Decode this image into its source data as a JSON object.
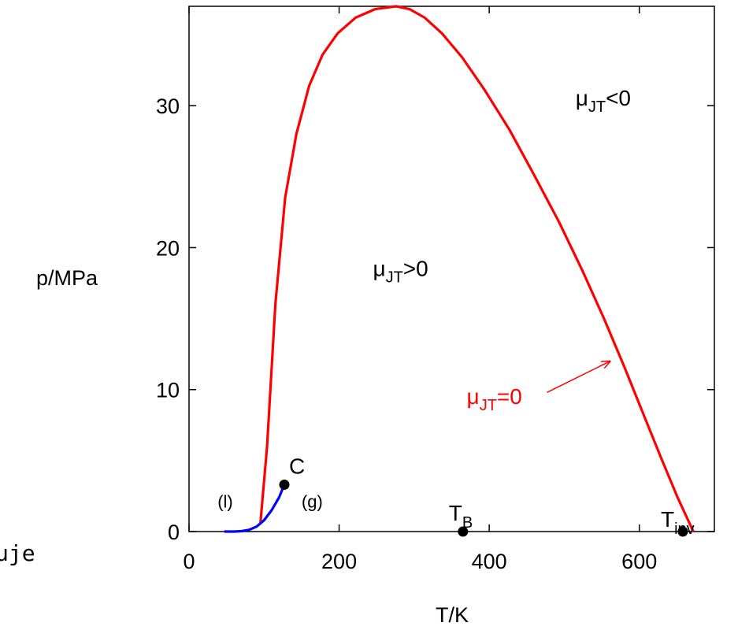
{
  "chart_data": {
    "type": "line",
    "xlabel": "T/K",
    "ylabel": "p/MPa",
    "xlim": [
      0,
      700
    ],
    "ylim": [
      0,
      37
    ],
    "x_ticks": [
      {
        "value": 0,
        "label": "0"
      },
      {
        "value": 200,
        "label": "200"
      },
      {
        "value": 400,
        "label": "400"
      },
      {
        "value": 600,
        "label": "600"
      }
    ],
    "y_ticks": [
      {
        "value": 0,
        "label": "0"
      },
      {
        "value": 10,
        "label": "10"
      },
      {
        "value": 20,
        "label": "20"
      },
      {
        "value": 30,
        "label": "30"
      }
    ],
    "series": [
      {
        "color": "#ff0000",
        "x": [
          95,
          104,
          115,
          128,
          143,
          160,
          178,
          198,
          222,
          248,
          276,
          294,
          314,
          337,
          364,
          394,
          427,
          460,
          493,
          524,
          553,
          580,
          606,
          629,
          651,
          672
        ],
        "y": [
          0.5,
          6,
          16,
          23.5,
          28,
          31.4,
          33.6,
          35.1,
          36.2,
          36.8,
          37,
          36.8,
          36.2,
          35.1,
          33.4,
          31.1,
          28.3,
          25.1,
          21.8,
          18.4,
          15,
          11.6,
          8.2,
          5.2,
          2.4,
          0
        ]
      },
      {
        "color": "#0000ff",
        "x": [
          47,
          60,
          70,
          80,
          90,
          100,
          110,
          120,
          127
        ],
        "y": [
          0,
          0,
          0.03,
          0.12,
          0.35,
          0.8,
          1.5,
          2.4,
          3.3
        ]
      }
    ],
    "points": [
      {
        "x": 127,
        "y": 3.3,
        "label": "C"
      },
      {
        "x": 365,
        "y": 0,
        "label": "T",
        "sub": "B"
      },
      {
        "x": 658,
        "y": 0,
        "label": "T",
        "sub": "inv"
      }
    ],
    "annotations": [
      {
        "key": "neg",
        "text": "μ",
        "sub": "JT",
        "suffix": "<0",
        "x": 515,
        "y": 30,
        "color": "#000000"
      },
      {
        "key": "pos",
        "text": "μ",
        "sub": "JT",
        "suffix": ">0",
        "x": 245,
        "y": 18,
        "color": "#000000"
      },
      {
        "key": "zero",
        "text": "μ",
        "sub": "JT",
        "suffix": "=0",
        "x": 370,
        "y": 9,
        "color": "#ff0000"
      },
      {
        "key": "liq",
        "text": "(l)",
        "x": 38,
        "y": 1.7,
        "color": "#000000"
      },
      {
        "key": "gas",
        "text": "(g)",
        "x": 150,
        "y": 1.7,
        "color": "#000000"
      }
    ],
    "arrow": {
      "from": [
        477,
        9.8
      ],
      "to": [
        561,
        12
      ],
      "color": "#ff0000"
    },
    "left_fragment": "uje"
  }
}
